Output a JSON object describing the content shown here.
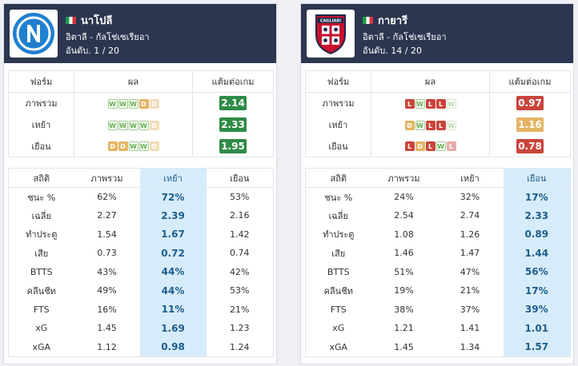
{
  "labels": {
    "form_col": "ฟอร์ม",
    "result_col": "ผล",
    "ppg_col": "แต้มต่อเกม",
    "stat_col": "สถิติ",
    "overall_col": "ภาพรวม",
    "home_col": "เหย้า",
    "away_col": "เยือน",
    "row_overall": "ภาพรวม",
    "row_home": "เหย้า",
    "row_away": "เยือน"
  },
  "teams": [
    {
      "name": "นาโปลี",
      "league": "อิตาลี - กัลโช่เซเรียอา",
      "rank": "อันดับ. 1 / 20",
      "logo": "napoli-logo",
      "form": [
        {
          "results": [
            "W",
            "W",
            "W",
            "D",
            "D"
          ],
          "ppg": "2.14",
          "color": "#2e8b47"
        },
        {
          "results": [
            "W",
            "W",
            "W",
            "W",
            "D"
          ],
          "ppg": "2.33",
          "color": "#2e8b47"
        },
        {
          "results": [
            "D",
            "D",
            "W",
            "W",
            "D"
          ],
          "ppg": "1.95",
          "color": "#2e8b47"
        }
      ],
      "highlight": "home",
      "stats": [
        {
          "label": "ชนะ %",
          "overall": "62%",
          "home": "72%",
          "away": "53%"
        },
        {
          "label": "เฉลี่ย",
          "overall": "2.27",
          "home": "2.39",
          "away": "2.16"
        },
        {
          "label": "ทำประตู",
          "overall": "1.54",
          "home": "1.67",
          "away": "1.42"
        },
        {
          "label": "เสีย",
          "overall": "0.73",
          "home": "0.72",
          "away": "0.74"
        },
        {
          "label": "BTTS",
          "overall": "43%",
          "home": "44%",
          "away": "42%"
        },
        {
          "label": "คลีนชีท",
          "overall": "49%",
          "home": "44%",
          "away": "53%"
        },
        {
          "label": "FTS",
          "overall": "16%",
          "home": "11%",
          "away": "21%"
        },
        {
          "label": "xG",
          "overall": "1.45",
          "home": "1.69",
          "away": "1.23"
        },
        {
          "label": "xGA",
          "overall": "1.12",
          "home": "0.98",
          "away": "1.24"
        }
      ]
    },
    {
      "name": "กายารี",
      "league": "อิตาลี - กัลโช่เซเรียอา",
      "rank": "อันดับ. 14 / 20",
      "logo": "cagliari-logo",
      "logo_text": "CAGLIARI",
      "form": [
        {
          "results": [
            "L",
            "W",
            "L",
            "L",
            "W"
          ],
          "ppg": "0.97",
          "color": "#c9443b"
        },
        {
          "results": [
            "D",
            "W",
            "L",
            "L",
            "W"
          ],
          "ppg": "1.16",
          "color": "#e3b463"
        },
        {
          "results": [
            "L",
            "D",
            "L",
            "W",
            "L"
          ],
          "ppg": "0.78",
          "color": "#c9443b"
        }
      ],
      "highlight": "away",
      "stats": [
        {
          "label": "ชนะ %",
          "overall": "24%",
          "home": "32%",
          "away": "17%"
        },
        {
          "label": "เฉลี่ย",
          "overall": "2.54",
          "home": "2.74",
          "away": "2.33"
        },
        {
          "label": "ทำประตู",
          "overall": "1.08",
          "home": "1.26",
          "away": "0.89"
        },
        {
          "label": "เสีย",
          "overall": "1.46",
          "home": "1.47",
          "away": "1.44"
        },
        {
          "label": "BTTS",
          "overall": "51%",
          "home": "47%",
          "away": "56%"
        },
        {
          "label": "คลีนชีท",
          "overall": "19%",
          "home": "21%",
          "away": "17%"
        },
        {
          "label": "FTS",
          "overall": "38%",
          "home": "37%",
          "away": "39%"
        },
        {
          "label": "xG",
          "overall": "1.21",
          "home": "1.41",
          "away": "1.01"
        },
        {
          "label": "xGA",
          "overall": "1.45",
          "home": "1.34",
          "away": "1.57"
        }
      ]
    }
  ]
}
